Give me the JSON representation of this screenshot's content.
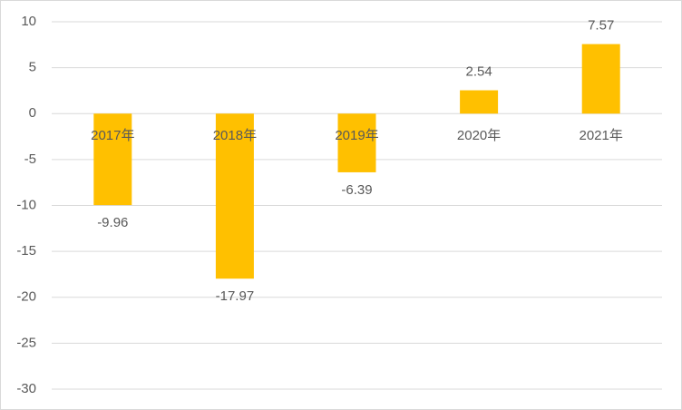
{
  "chart_data": {
    "type": "bar",
    "categories": [
      "2017年",
      "2018年",
      "2019年",
      "2020年",
      "2021年"
    ],
    "values": [
      -9.96,
      -17.97,
      -6.39,
      2.54,
      7.57
    ],
    "color": "#ffc000",
    "ylim": [
      -30,
      10
    ],
    "yticks": [
      -30,
      -25,
      -20,
      -15,
      -10,
      -5,
      0,
      5,
      10
    ],
    "grid": true
  }
}
